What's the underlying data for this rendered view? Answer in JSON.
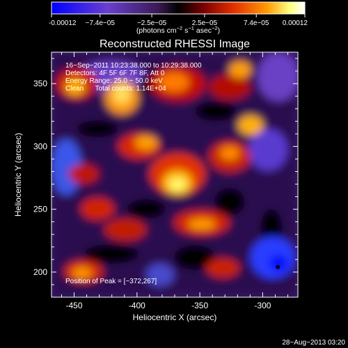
{
  "chart_data": {
    "type": "heatmap",
    "title": "Reconstructed RHESSI Image",
    "xlabel": "Heliocentric X (arcsec)",
    "ylabel": "Heliocentric Y (arcsec)",
    "xlim": [
      -468,
      -272
    ],
    "ylim": [
      180,
      375
    ],
    "x_ticks": [
      "-450",
      "-400",
      "-350",
      "-300"
    ],
    "x_tick_values": [
      -450,
      -400,
      -350,
      -300
    ],
    "y_ticks": [
      "200",
      "250",
      "300",
      "350"
    ],
    "y_tick_values": [
      200,
      250,
      300,
      350
    ],
    "colorbar": {
      "ticks": [
        "-0.00012",
        "−7.4e−05",
        "−2.5e−05",
        "2.5e−05",
        "7.4e−05",
        "0.00012"
      ],
      "tick_values": [
        -0.00012,
        -7.4e-05,
        -2.5e-05,
        2.5e-05,
        7.4e-05,
        0.00012
      ],
      "range": [
        -0.00012,
        0.00012
      ],
      "units_label": "(photons cm",
      "units_exp1": "−2",
      "units_mid": " s",
      "units_exp2": "−1",
      "units_end": " asec",
      "units_exp3": "−2",
      "units_close": ")",
      "colors": [
        "#0000ff",
        "#6a3fcf",
        "#3a1a55",
        "#000000",
        "#7a0000",
        "#e23000",
        "#ff9a00",
        "#ffff80",
        "#ffffff"
      ]
    },
    "annotations": {
      "line1": "16−Sep−2011 10:23:38.000 to 10:29:38.000",
      "line2": "Detectors: 4F 5F 6F 7F 8F, Att 0",
      "line3": "Energy Range: 25.0 − 50.0 keV",
      "line4": "Clean      Total counts: 1.14E+04",
      "peak": "Position of Peak = [−372,267]"
    },
    "peak": {
      "x": -372,
      "y": 267
    },
    "blue_feature": {
      "x": -288,
      "y": 204
    },
    "timestamp": "28−Aug−2013 03:20"
  }
}
